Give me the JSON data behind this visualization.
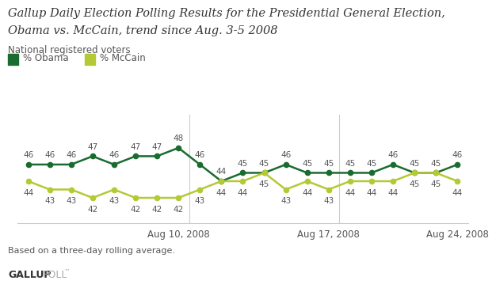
{
  "title_line1": "Gallup Daily Election Polling Results for the Presidential General Election,",
  "title_line2": "Obama vs. McCain, trend since Aug. 3-5 2008",
  "subtitle": "National registered voters",
  "footnote": "Based on a three-day rolling average.",
  "obama_values": [
    46,
    46,
    46,
    47,
    46,
    47,
    47,
    48,
    46,
    44,
    45,
    45,
    46,
    45,
    45,
    45,
    45,
    46,
    45,
    45,
    46
  ],
  "mccain_values": [
    44,
    43,
    43,
    42,
    43,
    42,
    42,
    42,
    43,
    44,
    44,
    45,
    43,
    44,
    43,
    44,
    44,
    44,
    45,
    45,
    44
  ],
  "obama_color": "#1a6b2f",
  "mccain_color": "#b5c935",
  "line_width": 1.8,
  "marker_size": 4.5,
  "ylim": [
    39,
    52
  ],
  "x_tick_positions": [
    7,
    14,
    20
  ],
  "x_tick_labels": [
    "Aug 10, 2008",
    "Aug 17, 2008",
    "Aug 24, 2008"
  ],
  "vline_positions": [
    7,
    14
  ],
  "background_color": "#ffffff",
  "axis_color": "#cccccc",
  "text_color": "#555555",
  "title_color": "#333333",
  "label_fontsize": 8.5,
  "title_fontsize": 10.5,
  "subtitle_fontsize": 8.5,
  "annotation_fontsize": 7.5,
  "legend_fontsize": 8.5
}
